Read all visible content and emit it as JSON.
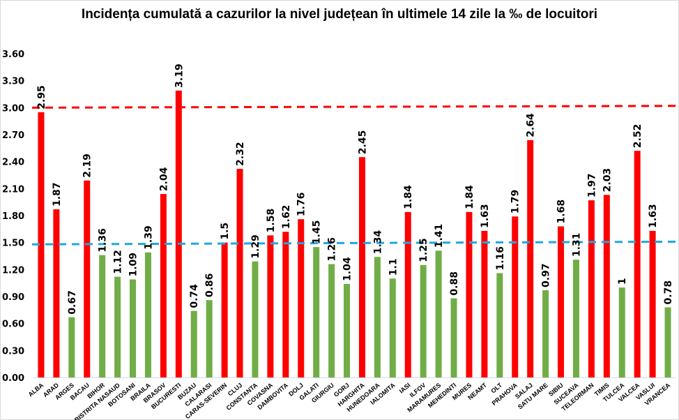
{
  "chart_data": {
    "type": "bar",
    "title": "Incidența cumulată a cazurilor la nivel județean în ultimele 14 zile la ‰ de locuitori",
    "xlabel": "",
    "ylabel": "",
    "ylim": [
      0,
      3.6
    ],
    "yticks": [
      "0.00",
      "0.30",
      "0.60",
      "0.90",
      "1.20",
      "1.50",
      "1.80",
      "2.10",
      "2.40",
      "2.70",
      "3.00",
      "3.30",
      "3.60"
    ],
    "grid": false,
    "legend": "none",
    "categories": [
      "ALBA",
      "ARAD",
      "ARGES",
      "BACAU",
      "BIHOR",
      "BISTRITA NASAUD",
      "BOTOSANI",
      "BRAILA",
      "BRASOV",
      "BUCURESTI",
      "BUZAU",
      "CALARASI",
      "CARAS-SEVERIN",
      "CLUJ",
      "CONSTANTA",
      "COVASNA",
      "DAMBOVITA",
      "DOLJ",
      "GALATI",
      "GIURGIU",
      "GORJ",
      "HARGHITA",
      "HUNEDOARA",
      "IALOMITA",
      "IASI",
      "ILFOV",
      "MARAMURES",
      "MEHEDINTI",
      "MURES",
      "NEAMT",
      "OLT",
      "PRAHOVA",
      "SALAJ",
      "SATU MARE",
      "SIBIU",
      "SUCEAVA",
      "TELEORMAN",
      "TIMIS",
      "TULCEA",
      "VALCEA",
      "VASLUI",
      "VRANCEA"
    ],
    "values": [
      2.95,
      1.87,
      0.67,
      2.19,
      1.36,
      1.12,
      1.09,
      1.39,
      2.04,
      3.19,
      0.74,
      0.86,
      1.5,
      2.32,
      1.29,
      1.58,
      1.62,
      1.76,
      1.45,
      1.26,
      1.04,
      2.45,
      1.34,
      1.1,
      1.84,
      1.25,
      1.41,
      0.88,
      1.84,
      1.63,
      1.16,
      1.79,
      2.64,
      0.97,
      1.68,
      1.31,
      1.97,
      2.03,
      1,
      2.52,
      1.63,
      0.78
    ],
    "data_labels": [
      "2.95",
      "1.87",
      "0.67",
      "2.19",
      "1.36",
      "1.12",
      "1.09",
      "1.39",
      "2.04",
      "3.19",
      "0.74",
      "0.86",
      "1.5",
      "2.32",
      "1.29",
      "1.58",
      "1.62",
      "1.76",
      "1.45",
      "1.26",
      "1.04",
      "2.45",
      "1.34",
      "1.1",
      "1.84",
      "1.25",
      "1.41",
      "0.88",
      "1.84",
      "1.63",
      "1.16",
      "1.79",
      "2.64",
      "0.97",
      "1.68",
      "1.31",
      "1.97",
      "2.03",
      "1",
      "2.52",
      "1.63",
      "0.78"
    ],
    "bar_colors": {
      "above_threshold": "#ff0000",
      "below_threshold": "#70ad47",
      "threshold": 1.5
    },
    "reference_lines": [
      {
        "name": "threshold-3",
        "color": "#ff0000",
        "style": "dashed",
        "y_start": 3.0,
        "y_end": 3.02
      },
      {
        "name": "threshold-1.5",
        "color": "#1fa7e1",
        "style": "dashed",
        "y_start": 1.48,
        "y_end": 1.51
      }
    ]
  }
}
